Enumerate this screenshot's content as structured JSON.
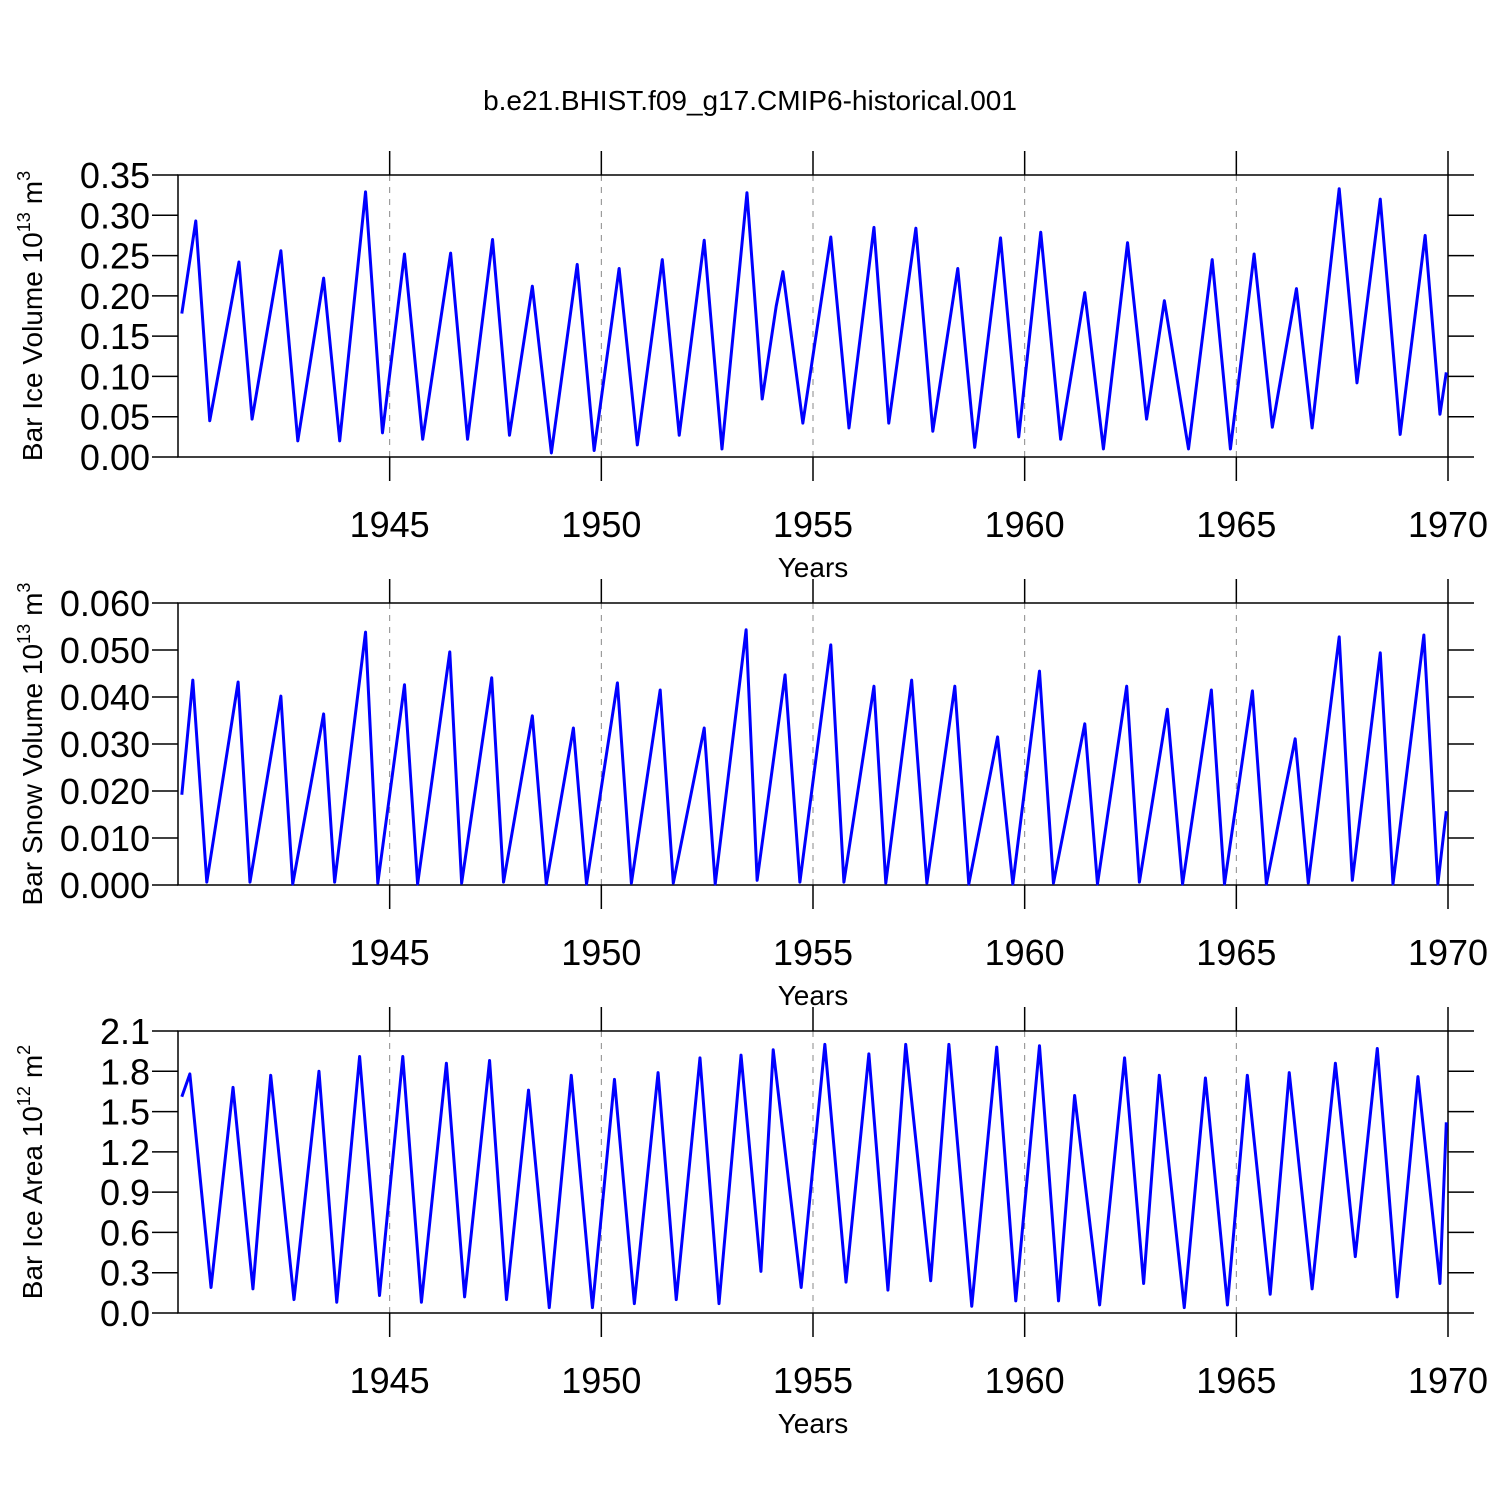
{
  "chart_data": [
    {
      "type": "line",
      "title": "b.e21.BHIST.f09_g17.CMIP6-historical.001",
      "ylabel": {
        "text": "Bar Ice Volume 10",
        "exponent": "13",
        "unit": "m",
        "unit_exponent": "3"
      },
      "xlabel": "Years",
      "x": [
        1940.09,
        1940.42,
        1940.75,
        1941.44,
        1941.75,
        1942.43,
        1942.83,
        1943.44,
        1943.82,
        1944.43,
        1944.83,
        1945.35,
        1945.78,
        1946.44,
        1946.84,
        1947.43,
        1947.83,
        1948.37,
        1948.82,
        1949.43,
        1949.83,
        1950.42,
        1950.85,
        1951.44,
        1951.84,
        1952.43,
        1952.85,
        1953.44,
        1953.8,
        1954.13,
        1954.29,
        1954.76,
        1955.42,
        1955.85,
        1956.44,
        1956.79,
        1957.43,
        1957.83,
        1958.42,
        1958.82,
        1959.43,
        1959.86,
        1960.38,
        1960.85,
        1961.42,
        1961.86,
        1962.43,
        1962.88,
        1963.3,
        1963.87,
        1964.43,
        1964.86,
        1965.42,
        1965.85,
        1966.42,
        1966.79,
        1967.43,
        1967.85,
        1968.4,
        1968.87,
        1969.46,
        1969.81,
        1969.96
      ],
      "series": [
        {
          "color": "#0000ff",
          "values": [
            0.178,
            0.293,
            0.045,
            0.242,
            0.047,
            0.256,
            0.02,
            0.222,
            0.02,
            0.329,
            0.03,
            0.252,
            0.022,
            0.253,
            0.022,
            0.27,
            0.027,
            0.212,
            0.005,
            0.239,
            0.008,
            0.234,
            0.015,
            0.245,
            0.027,
            0.269,
            0.01,
            0.328,
            0.072,
            0.187,
            0.23,
            0.042,
            0.273,
            0.036,
            0.285,
            0.042,
            0.284,
            0.032,
            0.234,
            0.012,
            0.272,
            0.025,
            0.279,
            0.022,
            0.204,
            0.01,
            0.266,
            0.047,
            0.194,
            0.01,
            0.245,
            0.01,
            0.252,
            0.037,
            0.209,
            0.036,
            0.333,
            0.092,
            0.32,
            0.028,
            0.275,
            0.053,
            0.105
          ]
        }
      ],
      "xlim": [
        1940,
        1970
      ],
      "xticks": [
        1945,
        1950,
        1955,
        1960,
        1965,
        1970
      ],
      "ylim": [
        0,
        0.35
      ],
      "yticks": [
        {
          "value": 0,
          "label": "0.00"
        },
        0.05,
        {
          "value": 0.1,
          "label": "0.10"
        },
        0.15,
        {
          "value": 0.2,
          "label": "0.20"
        },
        0.25,
        {
          "value": 0.3,
          "label": "0.30"
        },
        0.35
      ],
      "grid": "x"
    },
    {
      "type": "line",
      "ylabel": {
        "text": "Bar Snow Volume 10",
        "exponent": "13",
        "unit": "m",
        "unit_exponent": "3"
      },
      "xlabel": "Years",
      "x": [
        1940.09,
        1940.35,
        1940.68,
        1941.42,
        1941.7,
        1942.43,
        1942.71,
        1943.44,
        1943.7,
        1944.43,
        1944.72,
        1945.35,
        1945.66,
        1946.42,
        1946.7,
        1947.41,
        1947.69,
        1948.37,
        1948.7,
        1949.34,
        1949.65,
        1950.38,
        1950.71,
        1951.39,
        1951.7,
        1952.43,
        1952.69,
        1953.42,
        1953.68,
        1954.34,
        1954.69,
        1955.42,
        1955.73,
        1956.44,
        1956.72,
        1957.33,
        1957.69,
        1958.35,
        1958.68,
        1959.36,
        1959.72,
        1960.35,
        1960.68,
        1961.42,
        1961.72,
        1962.41,
        1962.71,
        1963.37,
        1963.73,
        1964.41,
        1964.72,
        1965.38,
        1965.71,
        1966.39,
        1966.7,
        1967.43,
        1967.74,
        1968.4,
        1968.7,
        1969.43,
        1969.76,
        1969.96
      ],
      "series": [
        {
          "color": "#0000ff",
          "values": [
            0.0192,
            0.0436,
            0.0006,
            0.0432,
            0.0006,
            0.0402,
            0.0002,
            0.0364,
            0.0006,
            0.0538,
            0.0004,
            0.0426,
            0.0002,
            0.0496,
            0.0004,
            0.0441,
            0.0006,
            0.036,
            0.0002,
            0.0334,
            0.0002,
            0.043,
            0.0004,
            0.0415,
            0.0004,
            0.0334,
            0.0002,
            0.0543,
            0.001,
            0.0447,
            0.0006,
            0.0511,
            0.0006,
            0.0423,
            0.0004,
            0.0436,
            0.0004,
            0.0423,
            0.0002,
            0.0315,
            0.0002,
            0.0455,
            0.0004,
            0.0343,
            0.0002,
            0.0423,
            0.0006,
            0.0374,
            0.0002,
            0.0415,
            0.0002,
            0.0413,
            0.0002,
            0.0311,
            0.0004,
            0.0528,
            0.001,
            0.0494,
            0.0002,
            0.0532,
            0.0002,
            0.0157
          ]
        }
      ],
      "xlim": [
        1940,
        1970
      ],
      "xticks": [
        1945,
        1950,
        1955,
        1960,
        1965,
        1970
      ],
      "ylim": [
        0,
        0.06
      ],
      "yticks": [
        {
          "value": 0,
          "label": "0.000"
        },
        {
          "value": 0.01,
          "label": "0.010"
        },
        {
          "value": 0.02,
          "label": "0.020"
        },
        {
          "value": 0.03,
          "label": "0.030"
        },
        {
          "value": 0.04,
          "label": "0.040"
        },
        {
          "value": 0.05,
          "label": "0.050"
        },
        {
          "value": 0.06,
          "label": "0.060"
        }
      ],
      "grid": "x"
    },
    {
      "type": "line",
      "ylabel": {
        "text": "Bar Ice Area 10",
        "exponent": "12",
        "unit": "m",
        "unit_exponent": "2"
      },
      "xlabel": "Years",
      "x": [
        1940.09,
        1940.28,
        1940.78,
        1941.3,
        1941.77,
        1942.19,
        1942.74,
        1943.33,
        1943.75,
        1944.29,
        1944.76,
        1945.31,
        1945.75,
        1946.34,
        1946.77,
        1947.36,
        1947.76,
        1948.28,
        1948.77,
        1949.29,
        1949.79,
        1950.31,
        1950.78,
        1951.34,
        1951.77,
        1952.33,
        1952.78,
        1953.3,
        1953.77,
        1954.06,
        1954.72,
        1955.28,
        1955.78,
        1956.32,
        1956.77,
        1957.19,
        1957.78,
        1958.21,
        1958.75,
        1959.34,
        1959.79,
        1960.35,
        1960.8,
        1961.18,
        1961.77,
        1962.36,
        1962.81,
        1963.18,
        1963.77,
        1964.27,
        1964.79,
        1965.26,
        1965.8,
        1966.25,
        1966.79,
        1967.34,
        1967.81,
        1968.33,
        1968.8,
        1969.29,
        1969.81,
        1969.96
      ],
      "series": [
        {
          "color": "#0000ff",
          "values": [
            1.61,
            1.78,
            0.19,
            1.68,
            0.18,
            1.77,
            0.1,
            1.8,
            0.08,
            1.91,
            0.13,
            1.91,
            0.08,
            1.86,
            0.12,
            1.88,
            0.1,
            1.66,
            0.04,
            1.77,
            0.04,
            1.74,
            0.07,
            1.79,
            0.1,
            1.9,
            0.07,
            1.92,
            0.31,
            1.96,
            0.19,
            2.0,
            0.23,
            1.93,
            0.17,
            2.0,
            0.24,
            2.0,
            0.05,
            1.98,
            0.09,
            1.99,
            0.09,
            1.62,
            0.06,
            1.9,
            0.22,
            1.77,
            0.04,
            1.75,
            0.06,
            1.77,
            0.14,
            1.79,
            0.18,
            1.86,
            0.42,
            1.97,
            0.12,
            1.76,
            0.22,
            1.42
          ]
        }
      ],
      "xlim": [
        1940,
        1970
      ],
      "xticks": [
        1945,
        1950,
        1955,
        1960,
        1965,
        1970
      ],
      "ylim": [
        0,
        2.1
      ],
      "yticks": [
        {
          "value": 0,
          "label": "0.0"
        },
        0.3,
        0.6,
        0.9,
        1.2,
        1.5,
        1.8,
        2.1
      ],
      "grid": "x"
    }
  ]
}
